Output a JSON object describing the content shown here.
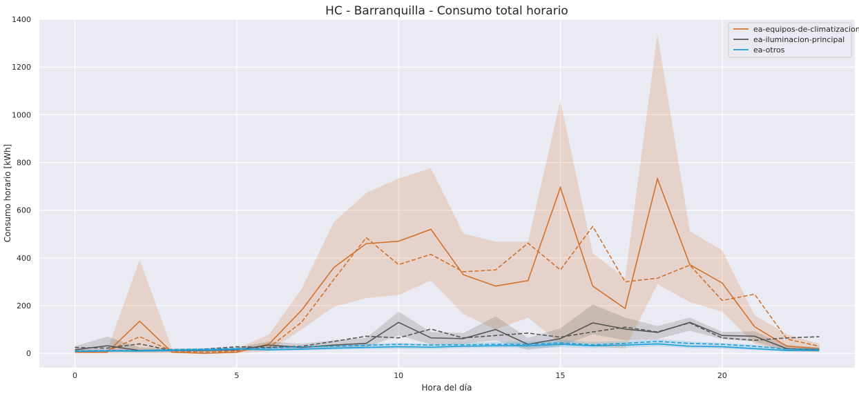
{
  "chart_data": {
    "type": "line",
    "title": "HC - Barranquilla - Consumo total horario",
    "xlabel": "Hora del día",
    "ylabel": "Consumo horario [kWh]",
    "xlim": [
      -1.1,
      24.1
    ],
    "ylim": [
      -60,
      1400
    ],
    "xticks": [
      0,
      5,
      10,
      15,
      20
    ],
    "yticks": [
      0,
      200,
      400,
      600,
      800,
      1000,
      1200,
      1400
    ],
    "grid": true,
    "legend_position": "top-right",
    "x": [
      0,
      1,
      2,
      3,
      4,
      5,
      6,
      7,
      8,
      9,
      10,
      11,
      12,
      13,
      14,
      15,
      16,
      17,
      18,
      19,
      20,
      21,
      22,
      23
    ],
    "series": [
      {
        "name": "ea-equipos-de-climatizacion",
        "color": "#d0712c",
        "values": [
          5,
          5,
          135,
          5,
          0,
          5,
          40,
          180,
          360,
          460,
          470,
          520,
          330,
          282,
          305,
          695,
          282,
          188,
          732,
          372,
          295,
          112,
          30,
          20
        ],
        "dashed_values": [
          10,
          10,
          70,
          10,
          5,
          10,
          25,
          130,
          310,
          485,
          372,
          415,
          342,
          350,
          462,
          350,
          532,
          300,
          315,
          370,
          222,
          248,
          60,
          30
        ],
        "band_low": [
          0,
          0,
          0,
          0,
          0,
          0,
          10,
          100,
          195,
          232,
          245,
          305,
          165,
          100,
          150,
          40,
          30,
          20,
          290,
          215,
          175,
          40,
          10,
          5
        ],
        "band_high": [
          20,
          15,
          392,
          20,
          10,
          20,
          80,
          270,
          550,
          672,
          733,
          776,
          502,
          468,
          468,
          1060,
          420,
          315,
          1337,
          512,
          432,
          160,
          80,
          40
        ]
      },
      {
        "name": "ea-iluminacion-principal",
        "color": "#565656",
        "values": [
          15,
          32,
          12,
          12,
          12,
          15,
          35,
          25,
          35,
          42,
          130,
          65,
          62,
          100,
          38,
          62,
          128,
          102,
          88,
          130,
          75,
          72,
          20,
          15
        ],
        "dashed_values": [
          25,
          22,
          40,
          12,
          18,
          28,
          25,
          30,
          50,
          72,
          65,
          102,
          65,
          75,
          85,
          68,
          90,
          110,
          90,
          128,
          65,
          55,
          65,
          70
        ],
        "band_low": [
          8,
          10,
          5,
          5,
          5,
          8,
          20,
          15,
          20,
          25,
          75,
          38,
          40,
          55,
          15,
          30,
          80,
          55,
          60,
          95,
          60,
          50,
          10,
          8
        ],
        "band_high": [
          30,
          70,
          25,
          20,
          20,
          25,
          50,
          40,
          55,
          65,
          175,
          90,
          85,
          155,
          65,
          105,
          205,
          150,
          115,
          150,
          90,
          92,
          35,
          25
        ]
      },
      {
        "name": "ea-otros",
        "color": "#1e9fd8",
        "values": [
          8,
          10,
          10,
          12,
          14,
          18,
          15,
          18,
          22,
          25,
          28,
          26,
          30,
          32,
          32,
          38,
          32,
          35,
          40,
          30,
          28,
          20,
          12,
          12
        ],
        "dashed_values": [
          10,
          12,
          12,
          16,
          18,
          20,
          22,
          28,
          30,
          34,
          38,
          35,
          36,
          38,
          38,
          44,
          36,
          42,
          50,
          42,
          38,
          30,
          18,
          18
        ],
        "band_low": [
          4,
          6,
          6,
          8,
          10,
          12,
          10,
          12,
          16,
          18,
          20,
          18,
          22,
          24,
          22,
          26,
          22,
          24,
          30,
          22,
          20,
          14,
          8,
          8
        ],
        "band_high": [
          14,
          16,
          16,
          20,
          22,
          26,
          28,
          30,
          34,
          40,
          44,
          40,
          44,
          48,
          50,
          56,
          48,
          52,
          60,
          50,
          44,
          36,
          22,
          20
        ]
      }
    ]
  }
}
